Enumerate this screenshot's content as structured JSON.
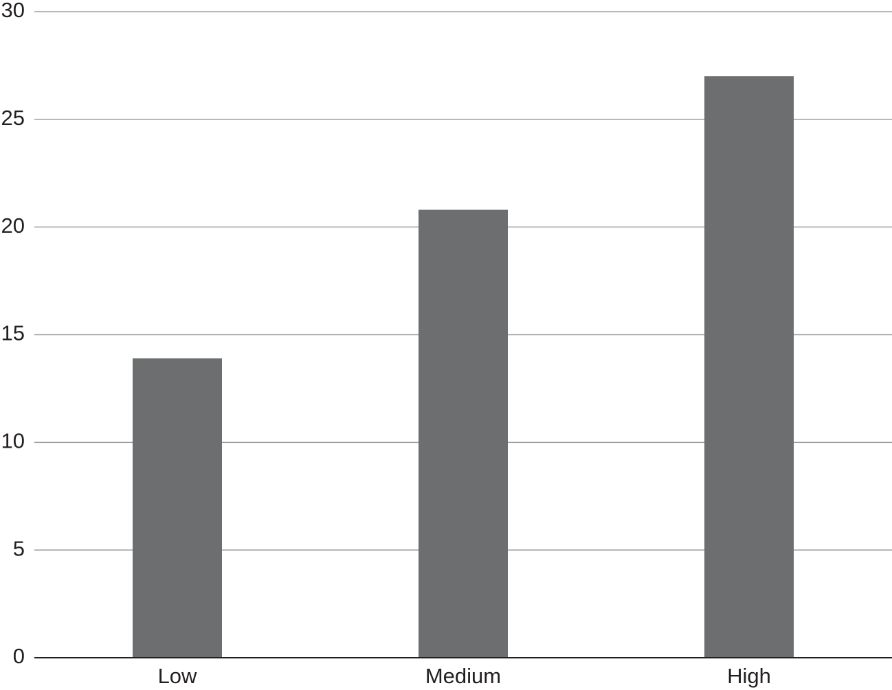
{
  "chart_data": {
    "type": "bar",
    "categories": [
      "Low",
      "Medium",
      "High"
    ],
    "values": [
      13.9,
      20.8,
      27.0
    ],
    "color": "#6d6e70",
    "ylim": [
      0,
      30
    ],
    "yticks": [
      0,
      5,
      10,
      15,
      20,
      25,
      30
    ],
    "grid": true
  }
}
